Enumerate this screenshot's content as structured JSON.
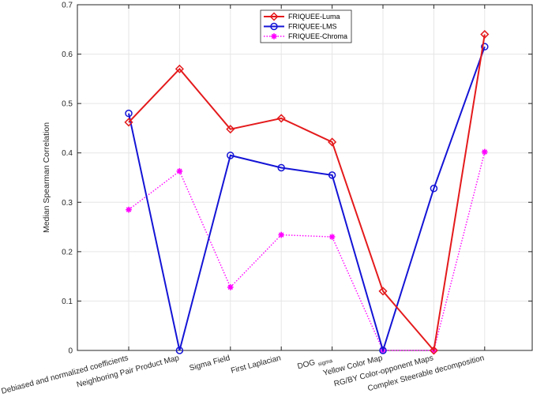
{
  "chart_data": {
    "type": "line",
    "title": "",
    "xlabel": "",
    "ylabel": "Median Spearman Correlation",
    "ylim": [
      0,
      0.7
    ],
    "yticks": [
      "0",
      "0.1",
      "0.2",
      "0.3",
      "0.4",
      "0.5",
      "0.6",
      "0.7"
    ],
    "grid": true,
    "legend_position": "top-center",
    "categories": [
      {
        "label": "Debiased and normalized coefficients",
        "sub": ""
      },
      {
        "label": "Neighboring Pair Product Map",
        "sub": ""
      },
      {
        "label": "Sigma Field",
        "sub": ""
      },
      {
        "label": "First Laplacian",
        "sub": ""
      },
      {
        "label": "DOG",
        "sub": "sigma"
      },
      {
        "label": "Yellow Color Map",
        "sub": ""
      },
      {
        "label": "RG/BY Color-opponent Maps",
        "sub": ""
      },
      {
        "label": "Complex Steerable decomposition",
        "sub": ""
      }
    ],
    "series": [
      {
        "name": "FRIQUEE-Luma",
        "color": "#e41a1c",
        "marker": "diamond",
        "line": "solid",
        "values": [
          0.462,
          0.57,
          0.448,
          0.47,
          0.422,
          0.12,
          0.0,
          0.64
        ]
      },
      {
        "name": "FRIQUEE-LMS",
        "color": "#1414d6",
        "marker": "circle",
        "line": "solid",
        "values": [
          0.48,
          0.0,
          0.395,
          0.37,
          0.355,
          0.0,
          0.328,
          0.615
        ]
      },
      {
        "name": "FRIQUEE-Chroma",
        "color": "#ff00ff",
        "marker": "asterisk",
        "line": "dotted",
        "values": [
          0.285,
          0.363,
          0.128,
          0.234,
          0.23,
          0.0,
          0.0,
          0.402
        ]
      }
    ]
  }
}
